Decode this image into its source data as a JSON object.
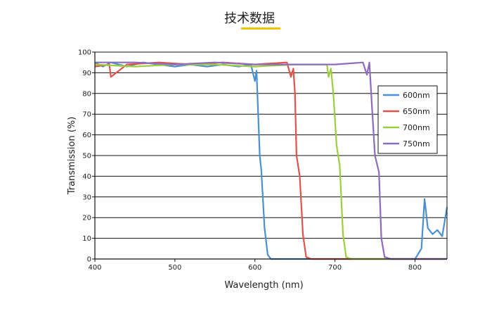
{
  "page": {
    "heading": "技术数据"
  },
  "chart_data": {
    "type": "line",
    "xlabel": "Wavelength (nm)",
    "ylabel": "Transmission (%)",
    "xlim": [
      400,
      840
    ],
    "ylim": [
      0,
      100
    ],
    "xticks": [
      400,
      500,
      600,
      700,
      800
    ],
    "yticks": [
      0,
      10,
      20,
      30,
      40,
      50,
      60,
      70,
      80,
      90,
      100
    ],
    "grid": "horizontal",
    "legend_position": "right",
    "series": [
      {
        "name": "600nm",
        "color": "#4a90d0",
        "x": [
          400,
          410,
          420,
          440,
          460,
          480,
          500,
          520,
          540,
          560,
          580,
          595,
          600,
          602,
          606,
          608,
          612,
          616,
          620,
          650,
          700,
          750,
          800,
          808,
          812,
          816,
          822,
          828,
          834,
          840
        ],
        "y": [
          95,
          93,
          95,
          93,
          95,
          94,
          93,
          94,
          93,
          94,
          93,
          94,
          86,
          91,
          50,
          43,
          15,
          2,
          0,
          0,
          0,
          0,
          0,
          5,
          29,
          15,
          12,
          14,
          11,
          25
        ]
      },
      {
        "name": "650nm",
        "color": "#e0524a",
        "x": [
          400,
          418,
          420,
          440,
          480,
          520,
          560,
          600,
          640,
          645,
          648,
          650,
          652,
          656,
          660,
          664,
          670,
          700,
          750,
          800,
          840
        ],
        "y": [
          93,
          94,
          88,
          94,
          95,
          94,
          95,
          94,
          95,
          88,
          92,
          80,
          50,
          40,
          12,
          1,
          0,
          0,
          0,
          0,
          0
        ]
      },
      {
        "name": "700nm",
        "color": "#9ccd3c",
        "x": [
          400,
          450,
          500,
          550,
          600,
          650,
          690,
          692,
          695,
          698,
          702,
          706,
          710,
          714,
          720,
          760,
          800,
          840
        ],
        "y": [
          94,
          93,
          94,
          94,
          93,
          94,
          94,
          88,
          92,
          80,
          55,
          45,
          12,
          1,
          0,
          0,
          0,
          0
        ]
      },
      {
        "name": "750nm",
        "color": "#8d6bbf",
        "x": [
          400,
          450,
          500,
          550,
          600,
          650,
          700,
          735,
          740,
          743,
          746,
          750,
          755,
          758,
          762,
          770,
          800,
          840
        ],
        "y": [
          95,
          95,
          94,
          95,
          94,
          94,
          94,
          95,
          89,
          95,
          75,
          50,
          42,
          10,
          1,
          0,
          0,
          0
        ]
      }
    ]
  }
}
